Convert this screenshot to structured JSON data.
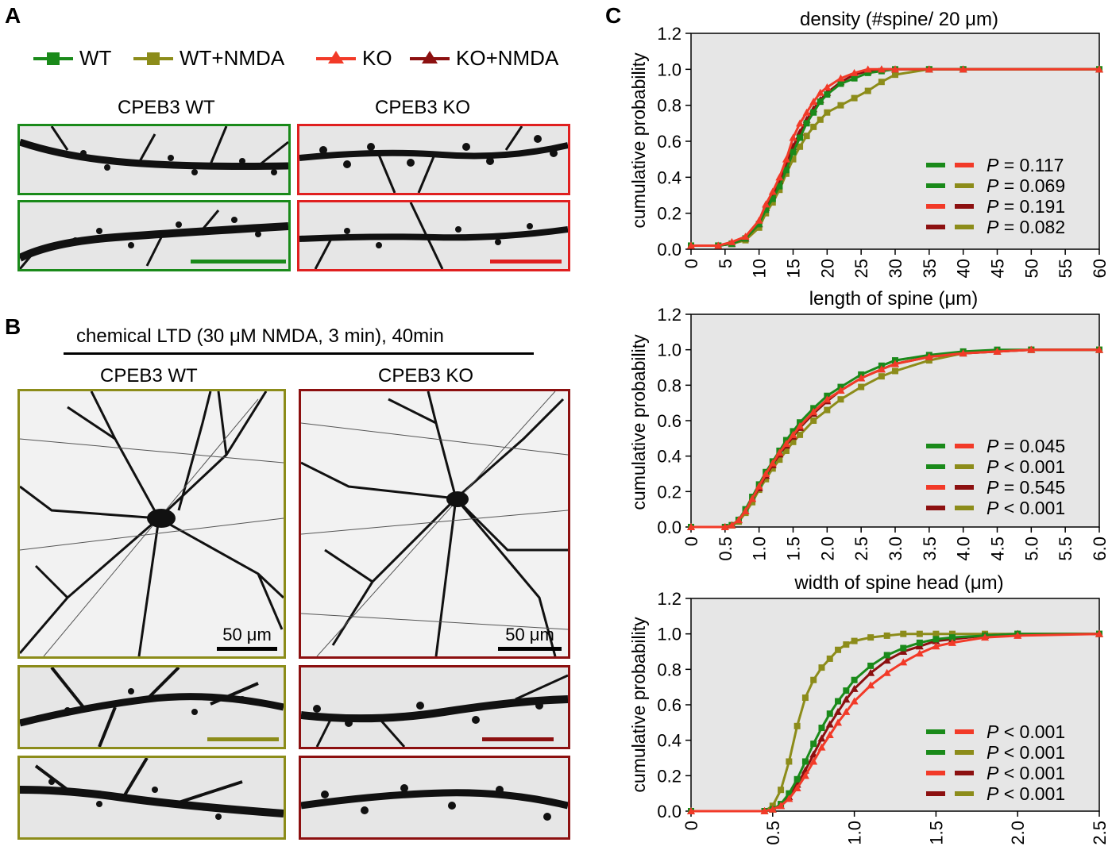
{
  "panels": {
    "a": "A",
    "b": "B",
    "c": "C"
  },
  "colors": {
    "wt": "#1a8a1a",
    "wt_nmda": "#8c8c1a",
    "ko": "#f23a28",
    "ko_nmda": "#8c1010",
    "bg": "#e6e6e6"
  },
  "legend": [
    {
      "label": "WT",
      "color": "#1a8a1a",
      "marker": "square"
    },
    {
      "label": "WT+NMDA",
      "color": "#8c8c1a",
      "marker": "square"
    },
    {
      "label": "KO",
      "color": "#f23a28",
      "marker": "triangle"
    },
    {
      "label": "KO+NMDA",
      "color": "#8c1010",
      "marker": "triangle"
    }
  ],
  "panel_a": {
    "wt_title": "CPEB3 WT",
    "ko_title": "CPEB3 KO"
  },
  "panel_b": {
    "header": "chemical LTD (30 μM NMDA, 3 min), 40min",
    "wt_title": "CPEB3 WT",
    "ko_title": "CPEB3 KO",
    "scale_wt": "50 μm",
    "scale_ko": "50 μm"
  },
  "chart_data": [
    {
      "type": "line",
      "title": "density (#spine/ 20 μm)",
      "ylabel": "cumulative probability",
      "xlabel": "",
      "xlim": [
        0,
        60
      ],
      "ylim": [
        0,
        1.2
      ],
      "xticks": [
        "0",
        "5",
        "10",
        "15",
        "20",
        "25",
        "30",
        "35",
        "40",
        "45",
        "50",
        "55",
        "60"
      ],
      "yticks": [
        "0.0",
        "0.2",
        "0.4",
        "0.6",
        "0.8",
        "1.0",
        "1.2"
      ],
      "x": [
        0,
        4,
        6,
        8,
        10,
        11,
        12,
        13,
        14,
        15,
        16,
        17,
        18,
        19,
        20,
        22,
        24,
        26,
        28,
        30,
        35,
        40,
        60
      ],
      "series": [
        {
          "name": "WT",
          "values": [
            0.02,
            0.02,
            0.03,
            0.06,
            0.14,
            0.22,
            0.28,
            0.35,
            0.44,
            0.54,
            0.62,
            0.7,
            0.76,
            0.82,
            0.86,
            0.92,
            0.95,
            0.98,
            0.99,
            1.0,
            1.0,
            1.0,
            1.0
          ]
        },
        {
          "name": "WT+NMDA",
          "values": [
            0.02,
            0.02,
            0.03,
            0.05,
            0.12,
            0.2,
            0.26,
            0.33,
            0.42,
            0.5,
            0.57,
            0.63,
            0.68,
            0.72,
            0.76,
            0.8,
            0.84,
            0.88,
            0.93,
            0.97,
            1.0,
            1.0,
            1.0
          ]
        },
        {
          "name": "KO",
          "values": [
            0.02,
            0.02,
            0.04,
            0.07,
            0.16,
            0.25,
            0.32,
            0.4,
            0.5,
            0.62,
            0.7,
            0.76,
            0.82,
            0.87,
            0.9,
            0.95,
            0.98,
            1.0,
            1.0,
            1.0,
            1.0,
            1.0,
            1.0
          ]
        },
        {
          "name": "KO+NMDA",
          "values": [
            0.02,
            0.02,
            0.03,
            0.06,
            0.14,
            0.23,
            0.3,
            0.38,
            0.47,
            0.57,
            0.65,
            0.72,
            0.78,
            0.83,
            0.87,
            0.93,
            0.97,
            0.99,
            1.0,
            1.0,
            1.0,
            1.0,
            1.0
          ]
        }
      ],
      "pvalues": [
        {
          "text": "= 0.117",
          "c1": "#1a8a1a",
          "c2": "#f23a28"
        },
        {
          "text": "= 0.069",
          "c1": "#1a8a1a",
          "c2": "#8c8c1a"
        },
        {
          "text": "= 0.191",
          "c1": "#f23a28",
          "c2": "#8c1010"
        },
        {
          "text": "= 0.082",
          "c1": "#8c1010",
          "c2": "#8c8c1a"
        }
      ]
    },
    {
      "type": "line",
      "title": "length of spine (μm)",
      "ylabel": "cumulative probability",
      "xlabel": "",
      "xlim": [
        0,
        6
      ],
      "ylim": [
        0,
        1.2
      ],
      "xticks": [
        "0",
        "0.5",
        "1.0",
        "1.5",
        "2.0",
        "2.5",
        "3.0",
        "3.5",
        "4.0",
        "4.5",
        "5.0",
        "5.5",
        "6.0"
      ],
      "yticks": [
        "0.0",
        "0.2",
        "0.4",
        "0.6",
        "0.8",
        "1.0",
        "1.2"
      ],
      "x": [
        0,
        0.5,
        0.6,
        0.7,
        0.8,
        0.9,
        1.0,
        1.1,
        1.2,
        1.3,
        1.4,
        1.5,
        1.6,
        1.8,
        2.0,
        2.2,
        2.5,
        2.8,
        3.0,
        3.5,
        4.0,
        4.5,
        5.0,
        6.0
      ],
      "series": [
        {
          "name": "WT",
          "values": [
            0,
            0,
            0.01,
            0.04,
            0.1,
            0.17,
            0.24,
            0.31,
            0.37,
            0.43,
            0.49,
            0.54,
            0.59,
            0.67,
            0.74,
            0.79,
            0.86,
            0.91,
            0.94,
            0.97,
            0.99,
            1.0,
            1.0,
            1.0
          ]
        },
        {
          "name": "WT+NMDA",
          "values": [
            0,
            0,
            0.01,
            0.03,
            0.08,
            0.14,
            0.21,
            0.27,
            0.33,
            0.38,
            0.43,
            0.48,
            0.52,
            0.6,
            0.66,
            0.72,
            0.79,
            0.85,
            0.88,
            0.94,
            0.98,
            0.99,
            1.0,
            1.0
          ]
        },
        {
          "name": "KO",
          "values": [
            0,
            0,
            0.01,
            0.04,
            0.09,
            0.16,
            0.23,
            0.3,
            0.36,
            0.42,
            0.47,
            0.52,
            0.57,
            0.65,
            0.72,
            0.77,
            0.84,
            0.89,
            0.92,
            0.96,
            0.98,
            0.99,
            1.0,
            1.0
          ]
        },
        {
          "name": "KO+NMDA",
          "values": [
            0,
            0,
            0.01,
            0.04,
            0.09,
            0.16,
            0.22,
            0.29,
            0.35,
            0.41,
            0.46,
            0.51,
            0.56,
            0.64,
            0.71,
            0.77,
            0.84,
            0.89,
            0.92,
            0.96,
            0.98,
            0.99,
            1.0,
            1.0
          ]
        }
      ],
      "pvalues": [
        {
          "text": "= 0.045",
          "c1": "#1a8a1a",
          "c2": "#f23a28"
        },
        {
          "text": "< 0.001",
          "c1": "#1a8a1a",
          "c2": "#8c8c1a"
        },
        {
          "text": "= 0.545",
          "c1": "#f23a28",
          "c2": "#8c1010"
        },
        {
          "text": "< 0.001",
          "c1": "#8c1010",
          "c2": "#8c8c1a"
        }
      ]
    },
    {
      "type": "line",
      "title": "width of spine head (μm)",
      "ylabel": "cumulative probability",
      "xlabel": "",
      "xlim": [
        0,
        2.5
      ],
      "ylim": [
        0,
        1.2
      ],
      "xticks": [
        "0",
        "0.5",
        "1.0",
        "1.5",
        "2.0",
        "2.5"
      ],
      "yticks": [
        "0.0",
        "0.2",
        "0.4",
        "0.6",
        "0.8",
        "1.0",
        "1.2"
      ],
      "x": [
        0,
        0.45,
        0.5,
        0.55,
        0.6,
        0.65,
        0.7,
        0.75,
        0.8,
        0.85,
        0.9,
        0.95,
        1.0,
        1.1,
        1.2,
        1.3,
        1.4,
        1.5,
        1.6,
        1.8,
        2.0,
        2.5
      ],
      "series": [
        {
          "name": "WT",
          "values": [
            0,
            0,
            0.01,
            0.04,
            0.1,
            0.18,
            0.28,
            0.38,
            0.47,
            0.55,
            0.62,
            0.68,
            0.74,
            0.82,
            0.88,
            0.92,
            0.95,
            0.97,
            0.98,
            0.99,
            1.0,
            1.0
          ]
        },
        {
          "name": "WT+NMDA",
          "values": [
            0,
            0,
            0.03,
            0.12,
            0.28,
            0.48,
            0.64,
            0.74,
            0.81,
            0.86,
            0.91,
            0.94,
            0.96,
            0.98,
            0.99,
            1.0,
            1.0,
            1.0,
            1.0,
            1.0,
            1.0,
            1.0
          ]
        },
        {
          "name": "KO",
          "values": [
            0,
            0,
            0.01,
            0.03,
            0.07,
            0.13,
            0.2,
            0.28,
            0.36,
            0.43,
            0.5,
            0.56,
            0.62,
            0.71,
            0.78,
            0.84,
            0.89,
            0.93,
            0.95,
            0.98,
            0.99,
            1.0
          ]
        },
        {
          "name": "KO+NMDA",
          "values": [
            0,
            0,
            0.01,
            0.03,
            0.08,
            0.15,
            0.23,
            0.32,
            0.41,
            0.49,
            0.56,
            0.63,
            0.69,
            0.78,
            0.85,
            0.9,
            0.93,
            0.96,
            0.97,
            0.99,
            1.0,
            1.0
          ]
        }
      ],
      "pvalues": [
        {
          "text": "< 0.001",
          "c1": "#1a8a1a",
          "c2": "#f23a28"
        },
        {
          "text": "< 0.001",
          "c1": "#1a8a1a",
          "c2": "#8c8c1a"
        },
        {
          "text": "< 0.001",
          "c1": "#f23a28",
          "c2": "#8c1010"
        },
        {
          "text": "< 0.001",
          "c1": "#8c1010",
          "c2": "#8c8c1a"
        }
      ]
    }
  ]
}
